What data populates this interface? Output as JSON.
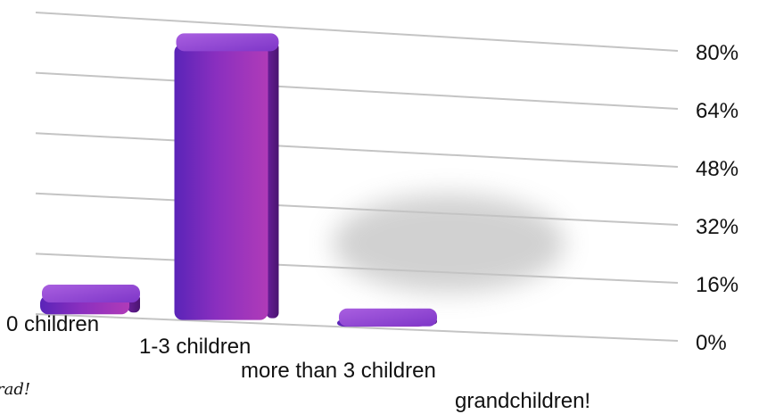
{
  "chart_data": {
    "type": "bar",
    "title": "",
    "xlabel": "",
    "ylabel": "",
    "ylim": [
      0,
      80
    ],
    "yticks": [
      0,
      16,
      32,
      48,
      64,
      80
    ],
    "ytick_labels": [
      "0%",
      "16%",
      "32%",
      "48%",
      "64%",
      "80%"
    ],
    "categories": [
      "0 children",
      "1-3 children",
      "more than 3 children",
      "grandchildren!"
    ],
    "values": [
      6,
      75,
      3,
      0
    ],
    "grid": true,
    "bar_color": "#8a2fbf",
    "bar_top_color": "#b46ee0",
    "bar_side_color": "#5e1a8e",
    "annotation": "rad!"
  }
}
